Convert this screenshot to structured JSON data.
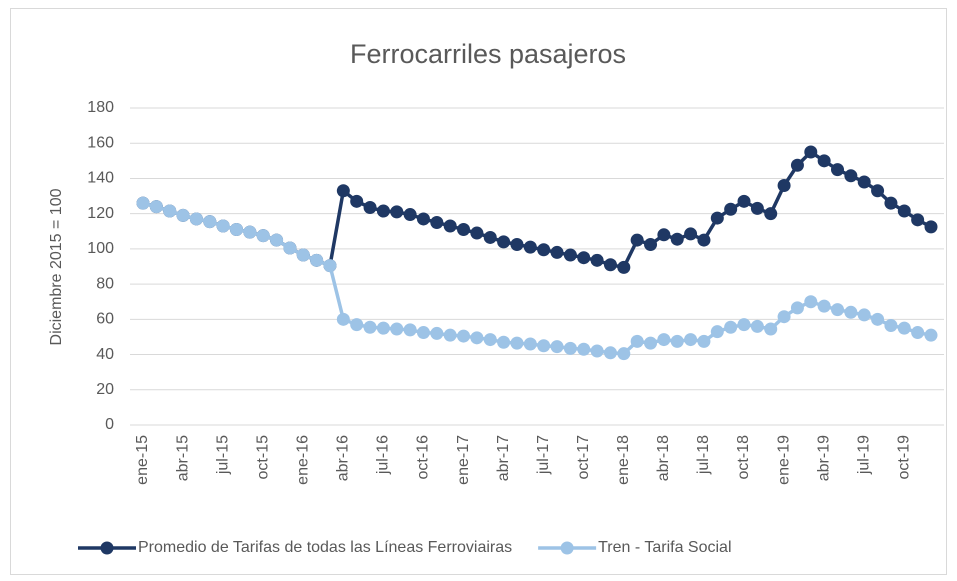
{
  "chart_data": {
    "type": "line",
    "title": "Ferrocarriles pasajeros",
    "y_label": "Diciembre 2015 = 100",
    "categories": [
      "ene-15",
      null,
      null,
      "abr-15",
      null,
      null,
      "jul-15",
      null,
      null,
      "oct-15",
      null,
      null,
      "ene-16",
      null,
      null,
      "abr-16",
      null,
      null,
      "jul-16",
      null,
      null,
      "oct-16",
      null,
      null,
      "ene-17",
      null,
      null,
      "abr-17",
      null,
      null,
      "jul-17",
      null,
      null,
      "oct-17",
      null,
      null,
      "ene-18",
      null,
      null,
      "abr-18",
      null,
      null,
      "jul-18",
      null,
      null,
      "oct-18",
      null,
      null,
      "ene-19",
      null,
      null,
      "abr-19",
      null,
      null,
      "jul-19",
      null,
      null,
      "oct-19",
      null,
      null
    ],
    "series": [
      {
        "name": "Promedio de Tarifas de todas las Líneas Ferroviairas",
        "color": "#1f3864",
        "values": [
          126,
          124,
          121.5,
          119,
          117,
          115.5,
          113,
          111,
          109.5,
          107.5,
          105,
          100.5,
          96.5,
          93.5,
          90.5,
          133,
          127,
          123.5,
          121.5,
          121,
          119.5,
          117,
          115,
          113,
          111,
          109,
          106.5,
          104,
          102.5,
          101,
          99.5,
          98,
          96.5,
          95,
          93.5,
          91,
          89.5,
          105,
          102.5,
          108,
          105.5,
          108.5,
          105,
          117.5,
          122.5,
          127,
          123,
          120,
          136,
          147.5,
          155,
          150,
          145,
          141.5,
          138,
          133,
          126,
          121.5,
          116.5,
          112.5
        ]
      },
      {
        "name": "Tren - Tarifa Social",
        "color": "#9dc3e6",
        "values": [
          126,
          124,
          121.5,
          119,
          117,
          115.5,
          113,
          111,
          109.5,
          107.5,
          105,
          100.5,
          96.5,
          93.5,
          90.5,
          60,
          57,
          55.5,
          55,
          54.5,
          54,
          52.5,
          52,
          51,
          50.5,
          49.5,
          48.5,
          47,
          46.5,
          46,
          45,
          44.5,
          43.5,
          43,
          42,
          41,
          40.5,
          47.5,
          46.5,
          48.5,
          47.5,
          48.5,
          47.5,
          53,
          55.5,
          57,
          56,
          54.5,
          61.5,
          66.5,
          70,
          67.5,
          65.5,
          64,
          62.5,
          60,
          56.5,
          55,
          52.5,
          51
        ]
      }
    ],
    "ylim": [
      0,
      180
    ],
    "yticks": [
      0,
      20,
      40,
      60,
      80,
      100,
      120,
      140,
      160,
      180
    ],
    "grid": true,
    "legend": "bottom"
  }
}
